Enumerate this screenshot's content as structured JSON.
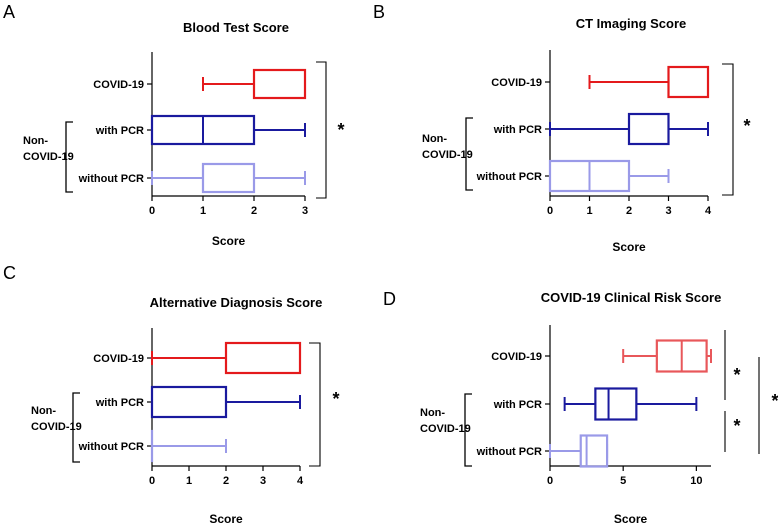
{
  "chart_data": [
    {
      "type": "box",
      "panel": "A",
      "title": "Blood Test Score",
      "xlabel": "Score",
      "xlim": [
        0,
        3
      ],
      "xticks": [
        "0",
        "1",
        "2",
        "3"
      ],
      "group_label": [
        "Non-",
        "COVID-19"
      ],
      "significance": [
        "*"
      ],
      "categories": [
        "COVID-19",
        "with PCR",
        "without PCR"
      ],
      "series": [
        {
          "name": "COVID-19",
          "color": "#e41a1c",
          "min": 1,
          "q1": 2,
          "median": 2,
          "q3": 3,
          "max": 3
        },
        {
          "name": "with PCR",
          "color": "#1a1a9e",
          "min": 0,
          "q1": 0,
          "median": 1,
          "q3": 2,
          "max": 3
        },
        {
          "name": "without PCR",
          "color": "#9a9ae8",
          "min": 0,
          "q1": 1,
          "median": 1,
          "q3": 2,
          "max": 3
        }
      ]
    },
    {
      "type": "box",
      "panel": "B",
      "title": "CT Imaging Score",
      "xlabel": "Score",
      "xlim": [
        0,
        4
      ],
      "xticks": [
        "0",
        "1",
        "2",
        "3",
        "4"
      ],
      "group_label": [
        "Non-",
        "COVID-19"
      ],
      "significance": [
        "*"
      ],
      "categories": [
        "COVID-19",
        "with PCR",
        "without PCR"
      ],
      "series": [
        {
          "name": "COVID-19",
          "color": "#e41a1c",
          "min": 1,
          "q1": 3,
          "median": 3,
          "q3": 4,
          "max": 4
        },
        {
          "name": "with PCR",
          "color": "#1a1a9e",
          "min": 0,
          "q1": 2,
          "median": 2,
          "q3": 3,
          "max": 4
        },
        {
          "name": "without PCR",
          "color": "#9a9ae8",
          "min": 0,
          "q1": 0,
          "median": 1,
          "q3": 2,
          "max": 3
        }
      ]
    },
    {
      "type": "box",
      "panel": "C",
      "title": "Alternative Diagnosis Score",
      "xlabel": "Score",
      "xlim": [
        0,
        4
      ],
      "xticks": [
        "0",
        "1",
        "2",
        "3",
        "4"
      ],
      "group_label": [
        "Non-",
        "COVID-19"
      ],
      "significance": [
        "*"
      ],
      "categories": [
        "COVID-19",
        "with PCR",
        "without PCR"
      ],
      "series": [
        {
          "name": "COVID-19",
          "color": "#e41a1c",
          "min": 0,
          "q1": 2,
          "median": 2,
          "q3": 4,
          "max": 4
        },
        {
          "name": "with PCR",
          "color": "#1a1a9e",
          "min": 0,
          "q1": 0,
          "median": 0,
          "q3": 2,
          "max": 4
        },
        {
          "name": "without PCR",
          "color": "#9a9ae8",
          "min": 0,
          "q1": 0,
          "median": 0,
          "q3": 0,
          "max": 2
        }
      ]
    },
    {
      "type": "box",
      "panel": "D",
      "title": "COVID-19 Clinical Risk Score",
      "xlabel": "Score",
      "xlim": [
        0,
        11
      ],
      "xticks": [
        "0",
        "5",
        "10"
      ],
      "xtick_values": [
        0,
        5,
        10
      ],
      "group_label": [
        "Non-",
        "COVID-19"
      ],
      "significance": [
        "*",
        "*",
        "*"
      ],
      "categories": [
        "COVID-19",
        "with PCR",
        "without PCR"
      ],
      "series": [
        {
          "name": "COVID-19",
          "color": "#e8575a",
          "min": 5,
          "q1": 7.3,
          "median": 9,
          "q3": 10.7,
          "max": 11
        },
        {
          "name": "with PCR",
          "color": "#1a1a9e",
          "min": 1,
          "q1": 3.1,
          "median": 4,
          "q3": 5.9,
          "max": 10
        },
        {
          "name": "without PCR",
          "color": "#9a9ae8",
          "min": 0,
          "q1": 2.1,
          "median": 2.5,
          "q3": 3.9,
          "max": 3.9
        }
      ]
    }
  ]
}
